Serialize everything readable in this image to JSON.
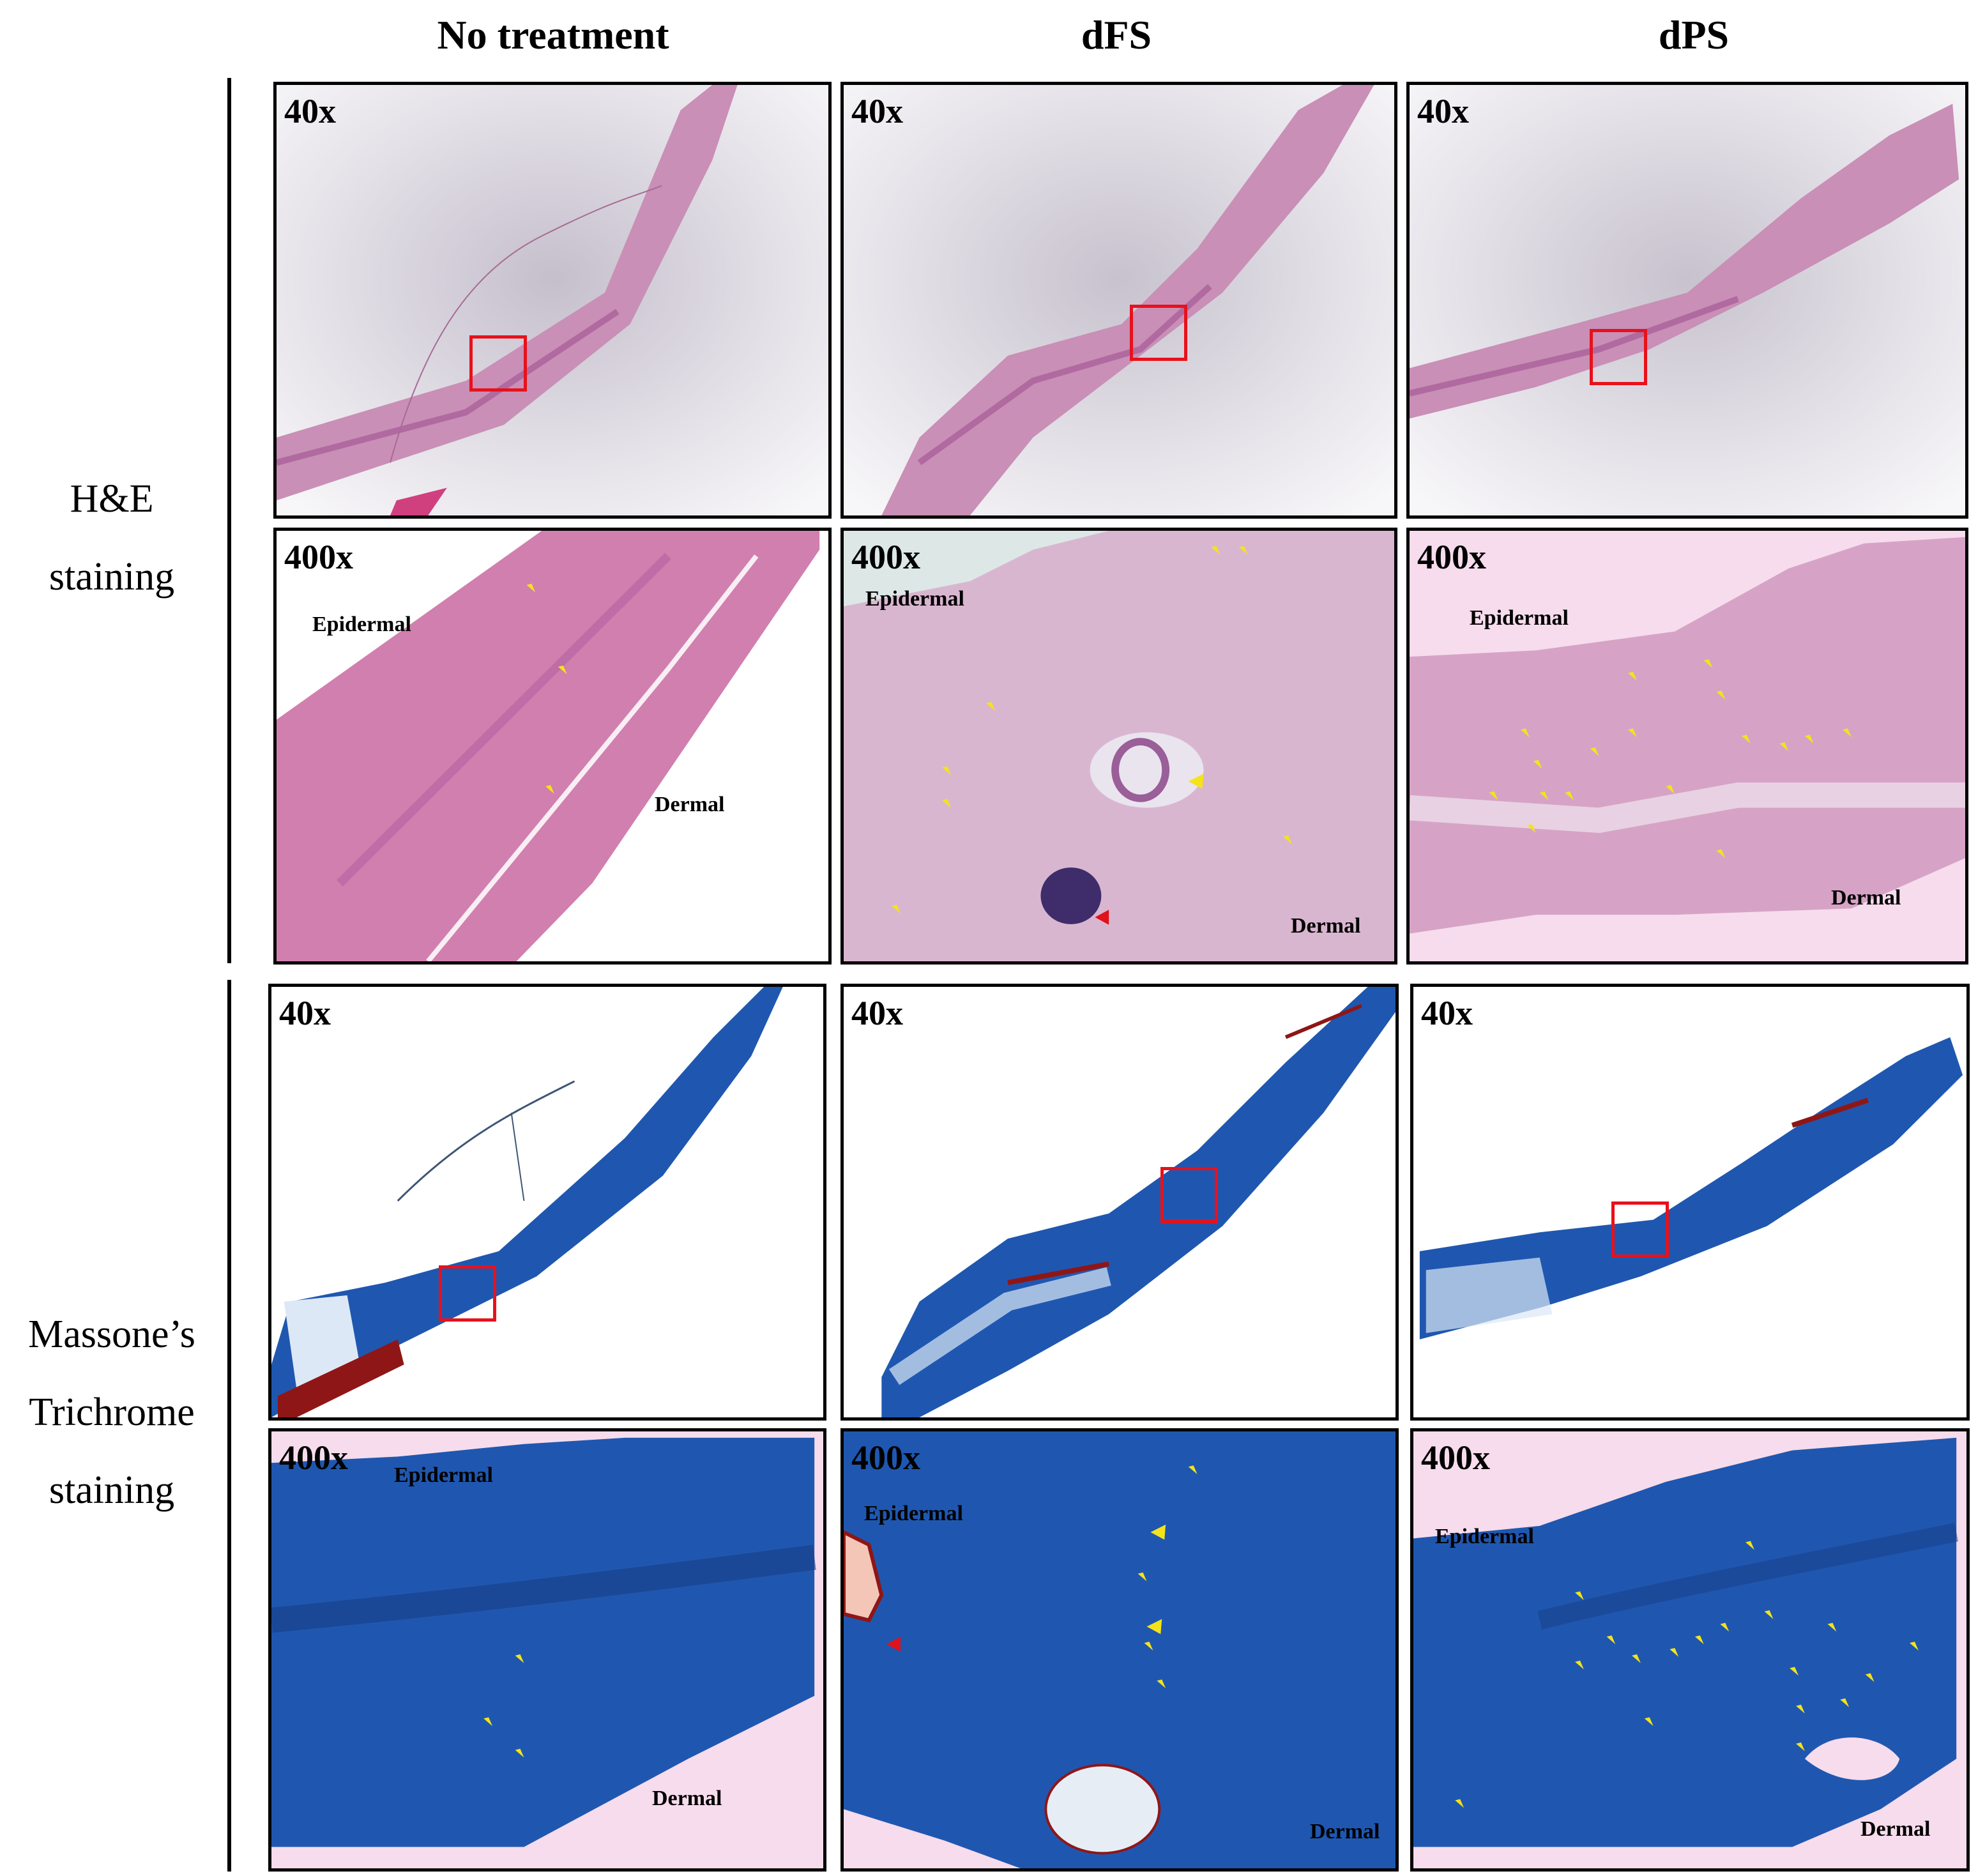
{
  "columns": [
    "No treatment",
    "dFS",
    "dPS"
  ],
  "rows": {
    "he": {
      "line1": "H&E",
      "line2": "staining"
    },
    "mt": {
      "line1": "Massone’s",
      "line2": "Trichrome",
      "line3": "staining"
    }
  },
  "magnification": {
    "low": "40x",
    "high": "400x"
  },
  "regions": {
    "epidermal": "Epidermal",
    "dermal": "Dermal"
  },
  "colors": {
    "he_tissue": "#c98fb6",
    "he_tissue_dark": "#b06aa0",
    "he_background": "#f2f0f5",
    "mt_tissue": "#1f57b0",
    "mt_tissue_dark": "#173e86",
    "mt_background": "#ffffff",
    "roi_box": "#e8111b",
    "arrow_yellow": "#f5e31a",
    "arrowhead_red": "#e0121a"
  }
}
